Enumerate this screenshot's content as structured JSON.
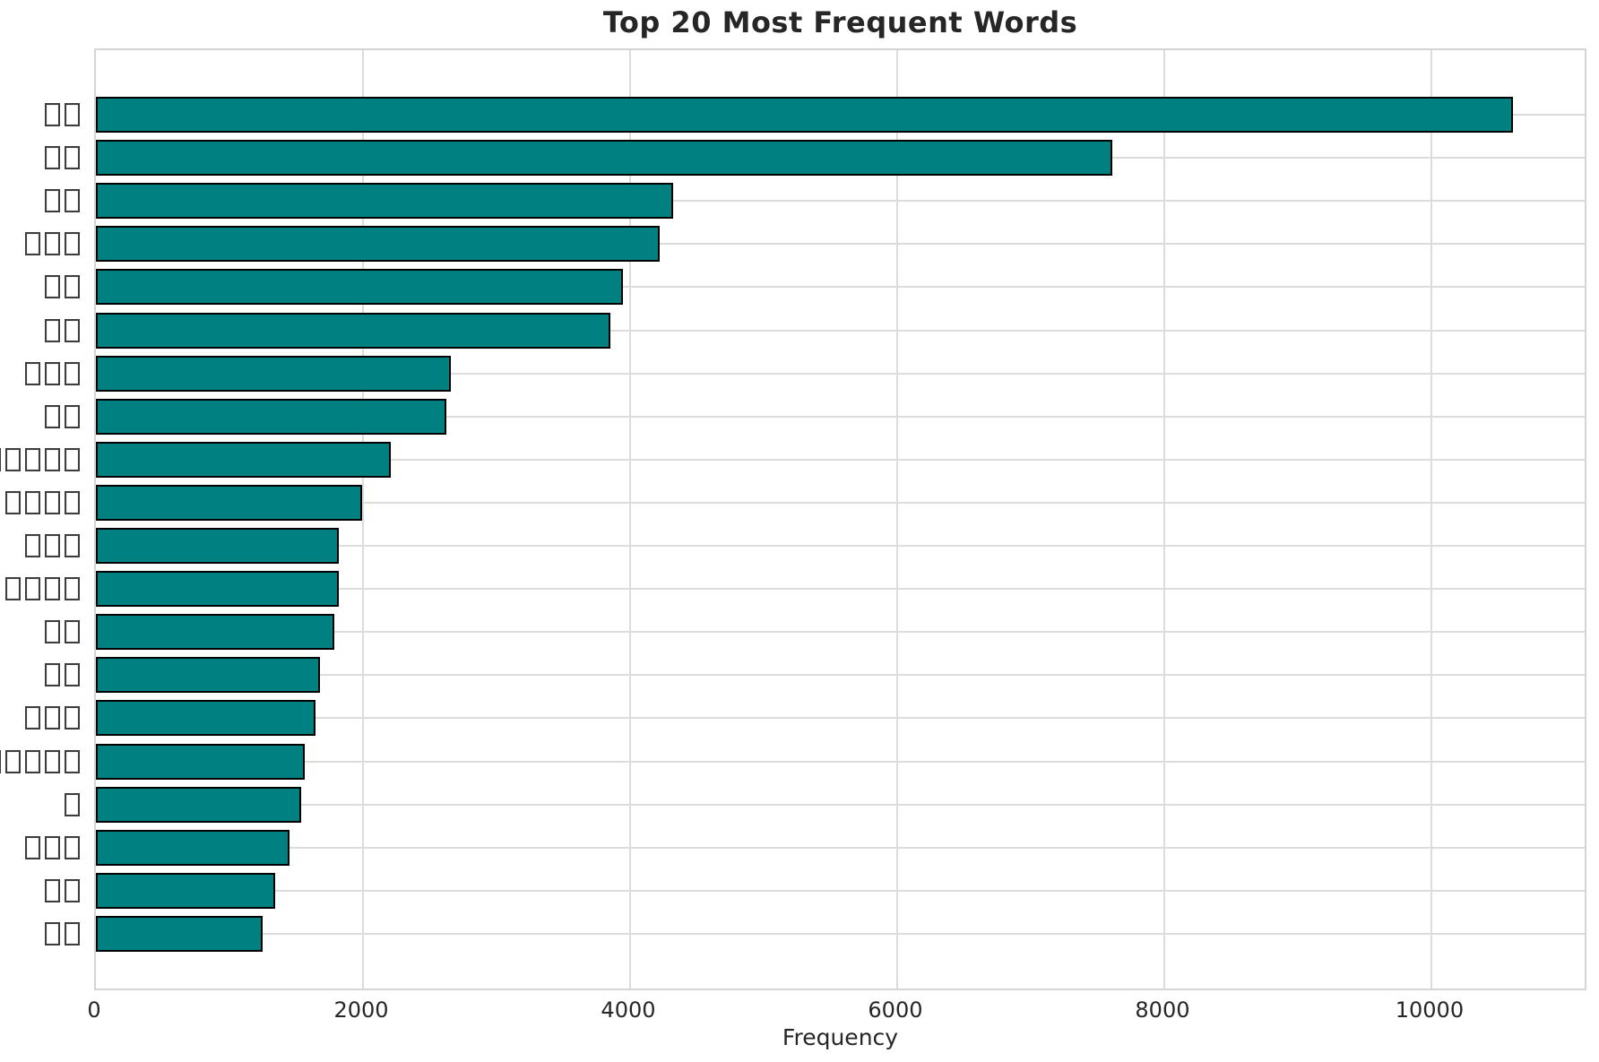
{
  "chart_data": {
    "type": "bar",
    "orientation": "horizontal",
    "title": "Top 20 Most Frequent Words",
    "xlabel": "Frequency",
    "ylabel": "",
    "categories": [
      "□□",
      "□□",
      "□□",
      "□□□",
      "□□",
      "□□",
      "□□□",
      "□□",
      "□□□□□□",
      "□□□□",
      "□□□",
      "□□□□",
      "□□",
      "□□",
      "□□□",
      "□□□□□",
      "□",
      "□□□",
      "□□",
      "□□"
    ],
    "values": [
      10640,
      7630,
      4335,
      4230,
      3955,
      3860,
      2665,
      2630,
      2215,
      1995,
      1825,
      1820,
      1790,
      1680,
      1645,
      1565,
      1540,
      1450,
      1345,
      1250
    ],
    "x_ticks": [
      0,
      2000,
      4000,
      6000,
      8000,
      10000
    ],
    "xlim": [
      0,
      11175
    ],
    "grid": true,
    "legend": "none",
    "bar_color": "#008080",
    "bar_edge_color": "#000000",
    "grid_color": "#dcdcdc",
    "text_color": "#262626"
  }
}
